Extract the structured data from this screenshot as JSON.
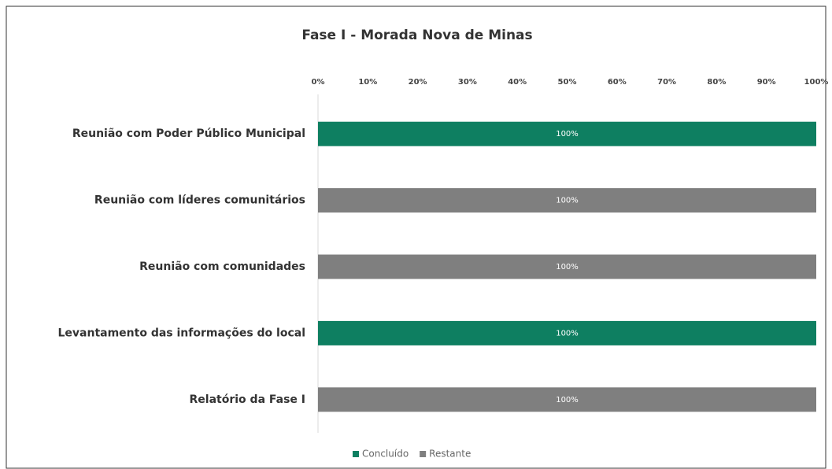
{
  "chart_data": {
    "type": "stacked_barh",
    "title": "Fase I - Morada Nova de Minas",
    "categories": [
      "Reunião com Poder Público Municipal",
      "Reunião com líderes comunitários",
      "Reunião com comunidades",
      "Levantamento das informações do local",
      "Relatório da Fase I"
    ],
    "series": [
      {
        "name": "Concluído",
        "color": "#0e7f61",
        "values": [
          100,
          0,
          0,
          100,
          0
        ],
        "value_labels": [
          "100%",
          null,
          null,
          "100%",
          null
        ]
      },
      {
        "name": "Restante",
        "color": "#7f7f7f",
        "values": [
          0,
          100,
          100,
          0,
          100
        ],
        "value_labels": [
          null,
          "100%",
          "100%",
          null,
          "100%"
        ]
      }
    ],
    "xlim": [
      0,
      100
    ],
    "xticks": [
      {
        "value": 0,
        "label": "0%"
      },
      {
        "value": 10,
        "label": "10%"
      },
      {
        "value": 20,
        "label": "20%"
      },
      {
        "value": 30,
        "label": "30%"
      },
      {
        "value": 40,
        "label": "40%"
      },
      {
        "value": 50,
        "label": "50%"
      },
      {
        "value": 60,
        "label": "60%"
      },
      {
        "value": 70,
        "label": "70%"
      },
      {
        "value": 80,
        "label": "80%"
      },
      {
        "value": 90,
        "label": "90%"
      },
      {
        "value": 100,
        "label": "100%"
      }
    ],
    "legend": "bottom"
  }
}
